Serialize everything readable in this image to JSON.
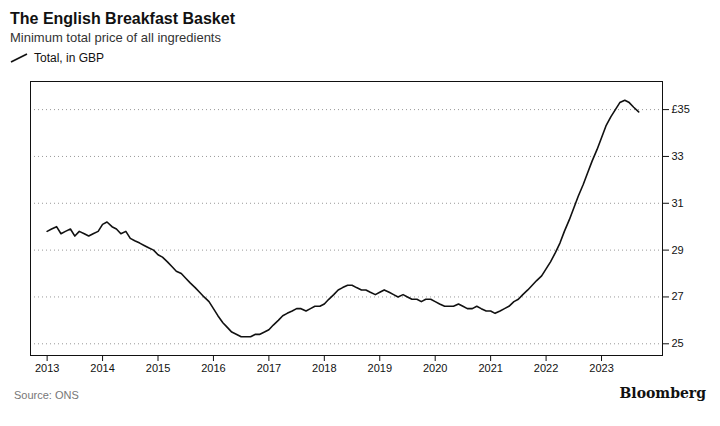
{
  "chart_data": {
    "type": "line",
    "title": "The English Breakfast Basket",
    "subtitle": "Minimum total price of all ingredients",
    "caption": "Source: ONS",
    "annotations": [
      "Bloomberg"
    ],
    "xlim": [
      2012.7,
      2024.1
    ],
    "xticks": [
      2013,
      2014,
      2015,
      2016,
      2017,
      2018,
      2019,
      2020,
      2021,
      2022,
      2023
    ],
    "ylim": [
      24.5,
      36.2
    ],
    "yticks": [
      25,
      27,
      29,
      31,
      33,
      {
        "value": 35,
        "label": "£35"
      }
    ],
    "grid": true,
    "x": [
      2013.0,
      2013.08,
      2013.17,
      2013.25,
      2013.33,
      2013.42,
      2013.5,
      2013.58,
      2013.67,
      2013.75,
      2013.83,
      2013.92,
      2014.0,
      2014.08,
      2014.17,
      2014.25,
      2014.33,
      2014.42,
      2014.5,
      2014.58,
      2014.67,
      2014.75,
      2014.83,
      2014.92,
      2015.0,
      2015.08,
      2015.17,
      2015.25,
      2015.33,
      2015.42,
      2015.5,
      2015.58,
      2015.67,
      2015.75,
      2015.83,
      2015.92,
      2016.0,
      2016.08,
      2016.17,
      2016.25,
      2016.33,
      2016.42,
      2016.5,
      2016.58,
      2016.67,
      2016.75,
      2016.83,
      2016.92,
      2017.0,
      2017.08,
      2017.17,
      2017.25,
      2017.33,
      2017.42,
      2017.5,
      2017.58,
      2017.67,
      2017.75,
      2017.83,
      2017.92,
      2018.0,
      2018.08,
      2018.17,
      2018.25,
      2018.33,
      2018.42,
      2018.5,
      2018.58,
      2018.67,
      2018.75,
      2018.83,
      2018.92,
      2019.0,
      2019.08,
      2019.17,
      2019.25,
      2019.33,
      2019.42,
      2019.5,
      2019.58,
      2019.67,
      2019.75,
      2019.83,
      2019.92,
      2020.0,
      2020.08,
      2020.17,
      2020.25,
      2020.33,
      2020.42,
      2020.5,
      2020.58,
      2020.67,
      2020.75,
      2020.83,
      2020.92,
      2021.0,
      2021.08,
      2021.17,
      2021.25,
      2021.33,
      2021.42,
      2021.5,
      2021.58,
      2021.67,
      2021.75,
      2021.83,
      2021.92,
      2022.0,
      2022.08,
      2022.17,
      2022.25,
      2022.33,
      2022.42,
      2022.5,
      2022.58,
      2022.67,
      2022.75,
      2022.83,
      2022.92,
      2023.0,
      2023.08,
      2023.17,
      2023.25,
      2023.33,
      2023.42,
      2023.5,
      2023.58,
      2023.67
    ],
    "series": [
      {
        "name": "Total, in GBP",
        "values": [
          29.8,
          29.9,
          30.0,
          29.7,
          29.8,
          29.9,
          29.6,
          29.8,
          29.7,
          29.6,
          29.7,
          29.8,
          30.1,
          30.2,
          30.0,
          29.9,
          29.7,
          29.8,
          29.5,
          29.4,
          29.3,
          29.2,
          29.1,
          29.0,
          28.8,
          28.7,
          28.5,
          28.3,
          28.1,
          28.0,
          27.8,
          27.6,
          27.4,
          27.2,
          27.0,
          26.8,
          26.5,
          26.2,
          25.9,
          25.7,
          25.5,
          25.4,
          25.3,
          25.3,
          25.3,
          25.4,
          25.4,
          25.5,
          25.6,
          25.8,
          26.0,
          26.2,
          26.3,
          26.4,
          26.5,
          26.5,
          26.4,
          26.5,
          26.6,
          26.6,
          26.7,
          26.9,
          27.1,
          27.3,
          27.4,
          27.5,
          27.5,
          27.4,
          27.3,
          27.3,
          27.2,
          27.1,
          27.2,
          27.3,
          27.2,
          27.1,
          27.0,
          27.1,
          27.0,
          26.9,
          26.9,
          26.8,
          26.9,
          26.9,
          26.8,
          26.7,
          26.6,
          26.6,
          26.6,
          26.7,
          26.6,
          26.5,
          26.5,
          26.6,
          26.5,
          26.4,
          26.4,
          26.3,
          26.4,
          26.5,
          26.6,
          26.8,
          26.9,
          27.1,
          27.3,
          27.5,
          27.7,
          27.9,
          28.2,
          28.5,
          28.9,
          29.3,
          29.8,
          30.3,
          30.8,
          31.3,
          31.8,
          32.3,
          32.8,
          33.3,
          33.8,
          34.3,
          34.7,
          35.0,
          35.3,
          35.4,
          35.3,
          35.1,
          34.9
        ]
      }
    ]
  }
}
